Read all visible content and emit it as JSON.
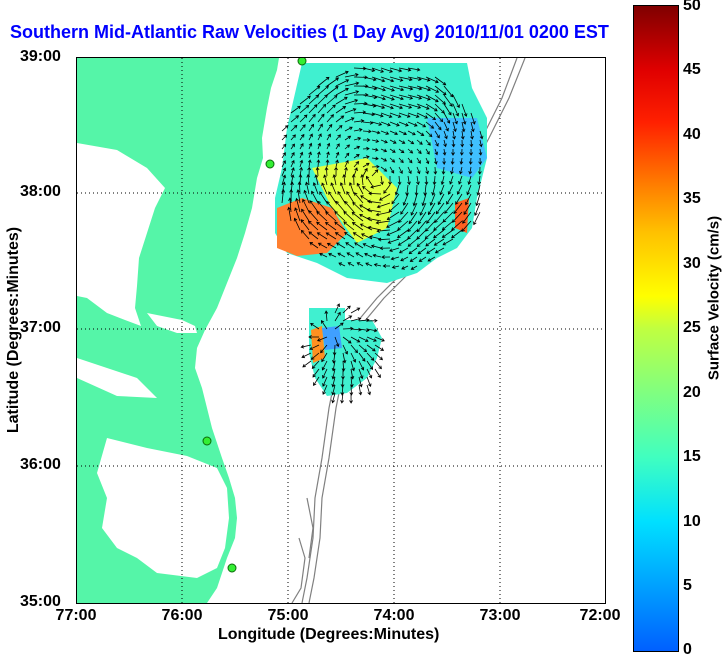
{
  "title": "Southern Mid-Atlantic Raw Velocities (1 Day Avg) 2010/11/01 0200 EST",
  "x_axis": {
    "label": "Longitude (Degrees:Minutes)",
    "ticks": [
      "77:00",
      "76:00",
      "75:00",
      "74:00",
      "73:00",
      "72:00"
    ]
  },
  "y_axis": {
    "label": "Latitude (Degrees:Minutes)",
    "ticks": [
      "39:00",
      "38:00",
      "37:00",
      "36:00",
      "35:00"
    ]
  },
  "colorbar": {
    "label": "Surface Velocity (cm/s)",
    "ticks": [
      "50",
      "45",
      "40",
      "35",
      "30",
      "25",
      "20",
      "15",
      "10",
      "5",
      "0"
    ]
  },
  "colors": {
    "land": "#55f5a8",
    "title": "#0000ff",
    "bathymetry": "#808080"
  }
}
